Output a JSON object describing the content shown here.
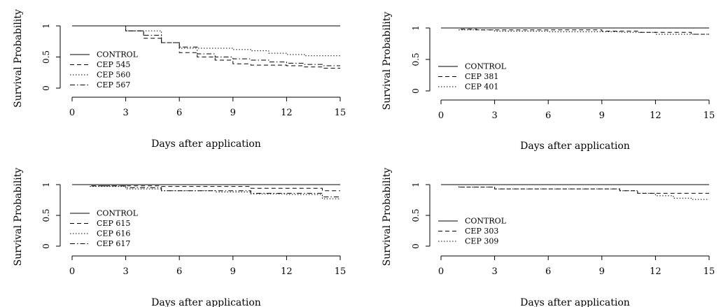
{
  "chart_data": [
    {
      "type": "line",
      "step": true,
      "xlabel": "Days after application",
      "ylabel": "Survival Probability",
      "xlim": [
        0,
        15
      ],
      "ylim": [
        0,
        1
      ],
      "xticks": [
        "0",
        "3",
        "6",
        "9",
        "12",
        "15"
      ],
      "yticks": [
        "0",
        "0.5",
        "1"
      ],
      "legend_position": "bottom-left",
      "series": [
        {
          "name": "CONTROL",
          "dash": "solid",
          "x": [
            0,
            15
          ],
          "y": [
            1.0,
            1.0
          ]
        },
        {
          "name": "CEP 545",
          "dash": "dashed",
          "x": [
            0,
            3,
            4,
            5,
            6,
            7,
            8,
            9,
            10,
            11,
            12,
            13,
            14,
            15
          ],
          "y": [
            1.0,
            0.92,
            0.8,
            0.73,
            0.57,
            0.5,
            0.45,
            0.39,
            0.37,
            0.37,
            0.36,
            0.34,
            0.32,
            0.32
          ]
        },
        {
          "name": "CEP 560",
          "dash": "dotted",
          "x": [
            0,
            3,
            5,
            6,
            7,
            9,
            10,
            11,
            12,
            13,
            14,
            15
          ],
          "y": [
            1.0,
            0.92,
            0.73,
            0.64,
            0.64,
            0.62,
            0.6,
            0.56,
            0.54,
            0.52,
            0.52,
            0.52
          ]
        },
        {
          "name": "CEP 567",
          "dash": "dashdot",
          "x": [
            0,
            3,
            4,
            5,
            6,
            7,
            8,
            9,
            10,
            11,
            12,
            13,
            14,
            15
          ],
          "y": [
            1.0,
            0.92,
            0.85,
            0.73,
            0.66,
            0.55,
            0.5,
            0.47,
            0.45,
            0.42,
            0.4,
            0.38,
            0.36,
            0.36
          ]
        }
      ]
    },
    {
      "type": "line",
      "step": true,
      "xlabel": "Days after application",
      "ylabel": "Survival Probability",
      "xlim": [
        0,
        15
      ],
      "ylim": [
        0,
        1
      ],
      "xticks": [
        "0",
        "3",
        "6",
        "9",
        "12",
        "15"
      ],
      "yticks": [
        "0",
        "0.5",
        "1"
      ],
      "legend_position": "bottom-left",
      "series": [
        {
          "name": "CONTROL",
          "dash": "solid",
          "x": [
            0,
            15
          ],
          "y": [
            1.0,
            1.0
          ]
        },
        {
          "name": "CEP 381",
          "dash": "dashed",
          "x": [
            0,
            1,
            2,
            9,
            11,
            12,
            14,
            15
          ],
          "y": [
            1.0,
            0.98,
            0.97,
            0.95,
            0.93,
            0.93,
            0.9,
            0.9
          ]
        },
        {
          "name": "CEP 401",
          "dash": "dotted",
          "x": [
            0,
            1,
            3,
            6,
            10,
            12,
            14,
            15
          ],
          "y": [
            1.0,
            0.97,
            0.95,
            0.94,
            0.93,
            0.9,
            0.9,
            0.9
          ]
        }
      ]
    },
    {
      "type": "line",
      "step": true,
      "xlabel": "Days after application",
      "ylabel": "Survival Probability",
      "xlim": [
        0,
        15
      ],
      "ylim": [
        0,
        1
      ],
      "xticks": [
        "0",
        "3",
        "6",
        "9",
        "12",
        "15"
      ],
      "yticks": [
        "0",
        "0.5",
        "1"
      ],
      "legend_position": "bottom-left",
      "series": [
        {
          "name": "CONTROL",
          "dash": "solid",
          "x": [
            0,
            15
          ],
          "y": [
            1.0,
            1.0
          ]
        },
        {
          "name": "CEP 615",
          "dash": "dashed",
          "x": [
            0,
            1,
            5,
            10,
            14,
            15
          ],
          "y": [
            1.0,
            0.98,
            0.97,
            0.94,
            0.9,
            0.9
          ]
        },
        {
          "name": "CEP 616",
          "dash": "dotted",
          "x": [
            0,
            1,
            3,
            5,
            8,
            10,
            12,
            14,
            15
          ],
          "y": [
            1.0,
            0.97,
            0.93,
            0.9,
            0.88,
            0.85,
            0.84,
            0.77,
            0.77
          ]
        },
        {
          "name": "CEP 617",
          "dash": "dashdot",
          "x": [
            0,
            1,
            3,
            5,
            10,
            14,
            15
          ],
          "y": [
            1.0,
            0.98,
            0.95,
            0.9,
            0.86,
            0.8,
            0.8
          ]
        }
      ]
    },
    {
      "type": "line",
      "step": true,
      "xlabel": "Days after application",
      "ylabel": "Survival Probability",
      "xlim": [
        0,
        15
      ],
      "ylim": [
        0,
        1
      ],
      "xticks": [
        "0",
        "3",
        "6",
        "9",
        "12",
        "15"
      ],
      "yticks": [
        "0",
        "0.5",
        "1"
      ],
      "legend_position": "bottom-left",
      "series": [
        {
          "name": "CONTROL",
          "dash": "solid",
          "x": [
            0,
            15
          ],
          "y": [
            1.0,
            1.0
          ]
        },
        {
          "name": "CEP 303",
          "dash": "dashed",
          "x": [
            0,
            1,
            3,
            10,
            11,
            15
          ],
          "y": [
            1.0,
            0.96,
            0.93,
            0.9,
            0.86,
            0.86
          ]
        },
        {
          "name": "CEP 309",
          "dash": "dotted",
          "x": [
            0,
            1,
            3,
            10,
            11,
            12,
            13,
            14,
            15
          ],
          "y": [
            1.0,
            0.96,
            0.93,
            0.9,
            0.86,
            0.82,
            0.78,
            0.76,
            0.76
          ]
        }
      ]
    }
  ]
}
